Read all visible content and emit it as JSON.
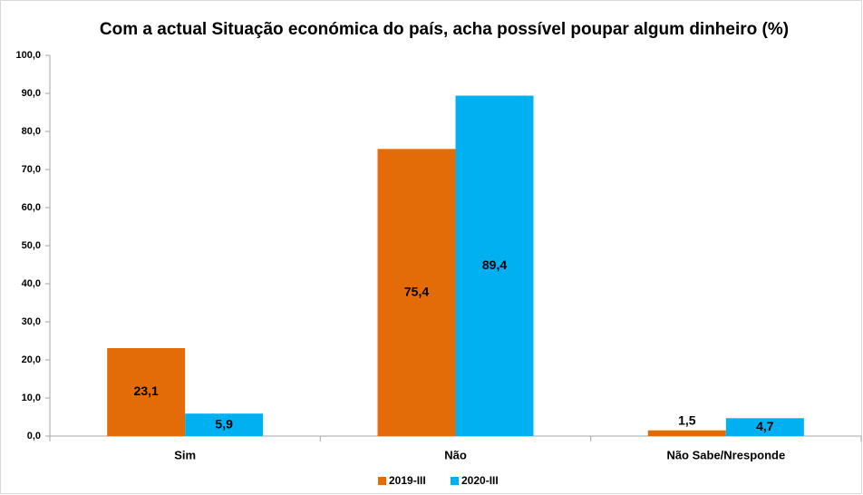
{
  "chart_data": {
    "type": "bar",
    "title": "Com a actual Situação económica do país, acha possível poupar algum dinheiro (%)",
    "categories": [
      "Sim",
      "Não",
      "Não Sabe/Nresponde"
    ],
    "series": [
      {
        "name": "2019-III",
        "color": "#e36c09",
        "values": [
          23.1,
          75.4,
          1.5
        ],
        "value_labels": [
          "23,1",
          "75,4",
          "1,5"
        ]
      },
      {
        "name": "2020-III",
        "color": "#00b0f0",
        "values": [
          5.9,
          89.4,
          4.7
        ],
        "value_labels": [
          "5,9",
          "89,4",
          "4,7"
        ]
      }
    ],
    "ylim": [
      0,
      100
    ],
    "yticks": [
      {
        "value": 0,
        "label": "0,0"
      },
      {
        "value": 10,
        "label": "10,0"
      },
      {
        "value": 20,
        "label": "20,0"
      },
      {
        "value": 30,
        "label": "30,0"
      },
      {
        "value": 40,
        "label": "40,0"
      },
      {
        "value": 50,
        "label": "50,0"
      },
      {
        "value": 60,
        "label": "60,0"
      },
      {
        "value": 70,
        "label": "70,0"
      },
      {
        "value": 80,
        "label": "80,0"
      },
      {
        "value": 90,
        "label": "90,0"
      },
      {
        "value": 100,
        "label": "100,0"
      }
    ],
    "grid": false
  }
}
